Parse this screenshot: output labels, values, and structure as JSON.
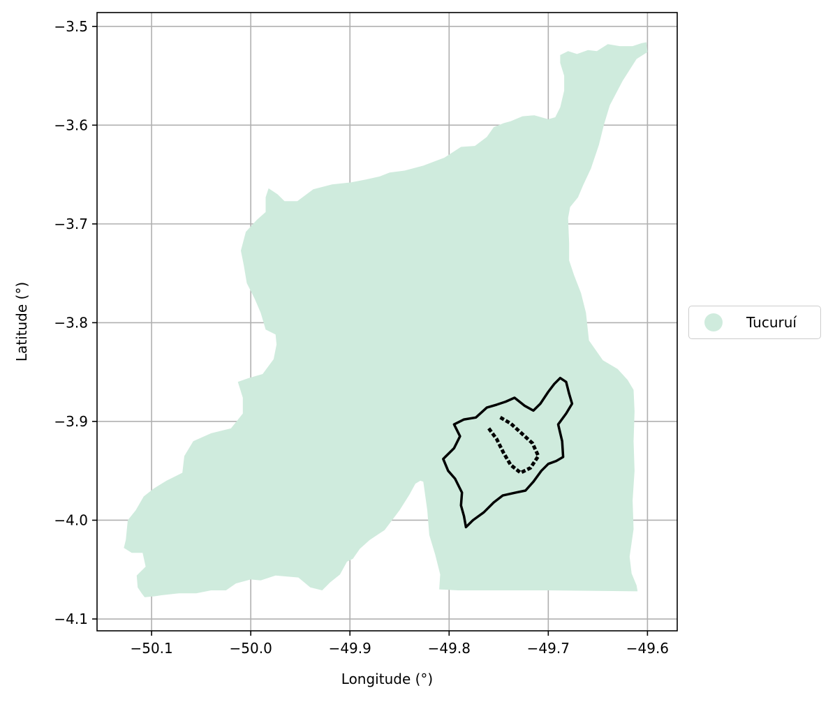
{
  "chart_data": {
    "type": "map",
    "xlabel": "Longitude (°)",
    "ylabel": "Latitude (°)",
    "xlim": [
      -50.155,
      -49.57
    ],
    "ylim": [
      -4.112,
      -3.486
    ],
    "grid": true,
    "x_ticks": [
      {
        "value": -50.1,
        "label": "−50.1"
      },
      {
        "value": -50.0,
        "label": "−50.0"
      },
      {
        "value": -49.9,
        "label": "−49.9"
      },
      {
        "value": -49.8,
        "label": "−49.8"
      },
      {
        "value": -49.7,
        "label": "−49.7"
      },
      {
        "value": -49.6,
        "label": "−49.6"
      }
    ],
    "y_ticks": [
      {
        "value": -3.5,
        "label": "−3.5"
      },
      {
        "value": -3.6,
        "label": "−3.6"
      },
      {
        "value": -3.7,
        "label": "−3.7"
      },
      {
        "value": -3.8,
        "label": "−3.8"
      },
      {
        "value": -3.9,
        "label": "−3.9"
      },
      {
        "value": -4.0,
        "label": "−4.0"
      },
      {
        "value": -4.1,
        "label": "−4.1"
      }
    ],
    "legend": {
      "position": "right",
      "entries": [
        {
          "name": "Tucuruí",
          "color": "#cfebdd"
        }
      ]
    },
    "colors": {
      "region_fill": "#cfebdd",
      "outline": "#000000",
      "grid": "#b0b0b0"
    },
    "region_polygon": [
      [
        -50.107,
        -4.078
      ],
      [
        -50.097,
        -4.077
      ],
      [
        -50.09,
        -4.076
      ],
      [
        -50.072,
        -4.074
      ],
      [
        -50.055,
        -4.074
      ],
      [
        -50.04,
        -4.071
      ],
      [
        -50.025,
        -4.071
      ],
      [
        -50.015,
        -4.064
      ],
      [
        -50.0,
        -4.06
      ],
      [
        -49.99,
        -4.061
      ],
      [
        -49.975,
        -4.056
      ],
      [
        -49.952,
        -4.058
      ],
      [
        -49.94,
        -4.068
      ],
      [
        -49.928,
        -4.071
      ],
      [
        -49.92,
        -4.063
      ],
      [
        -49.91,
        -4.055
      ],
      [
        -49.903,
        -4.042
      ],
      [
        -49.897,
        -4.039
      ],
      [
        -49.89,
        -4.029
      ],
      [
        -49.88,
        -4.02
      ],
      [
        -49.865,
        -4.01
      ],
      [
        -49.85,
        -3.99
      ],
      [
        -49.84,
        -3.974
      ],
      [
        -49.834,
        -3.963
      ],
      [
        -49.829,
        -3.96
      ],
      [
        -49.826,
        -3.961
      ],
      [
        -49.822,
        -3.99
      ],
      [
        -49.82,
        -4.015
      ],
      [
        -49.814,
        -4.035
      ],
      [
        -49.809,
        -4.055
      ],
      [
        -49.81,
        -4.07
      ],
      [
        -49.791,
        -4.071
      ],
      [
        -49.7,
        -4.071
      ],
      [
        -49.61,
        -4.072
      ],
      [
        -49.611,
        -4.066
      ],
      [
        -49.616,
        -4.054
      ],
      [
        -49.618,
        -4.037
      ],
      [
        -49.614,
        -4.009
      ],
      [
        -49.615,
        -3.98
      ],
      [
        -49.613,
        -3.95
      ],
      [
        -49.614,
        -3.92
      ],
      [
        -49.613,
        -3.89
      ],
      [
        -49.614,
        -3.868
      ],
      [
        -49.62,
        -3.858
      ],
      [
        -49.63,
        -3.847
      ],
      [
        -49.645,
        -3.838
      ],
      [
        -49.659,
        -3.818
      ],
      [
        -49.662,
        -3.79
      ],
      [
        -49.667,
        -3.77
      ],
      [
        -49.674,
        -3.752
      ],
      [
        -49.679,
        -3.737
      ],
      [
        -49.679,
        -3.72
      ],
      [
        -49.68,
        -3.694
      ],
      [
        -49.678,
        -3.683
      ],
      [
        -49.67,
        -3.673
      ],
      [
        -49.665,
        -3.661
      ],
      [
        -49.657,
        -3.644
      ],
      [
        -49.649,
        -3.62
      ],
      [
        -49.644,
        -3.6
      ],
      [
        -49.638,
        -3.58
      ],
      [
        -49.625,
        -3.555
      ],
      [
        -49.611,
        -3.533
      ],
      [
        -49.6,
        -3.526
      ],
      [
        -49.601,
        -3.516
      ],
      [
        -49.606,
        -3.517
      ],
      [
        -49.615,
        -3.52
      ],
      [
        -49.628,
        -3.52
      ],
      [
        -49.64,
        -3.518
      ],
      [
        -49.651,
        -3.525
      ],
      [
        -49.66,
        -3.524
      ],
      [
        -49.671,
        -3.528
      ],
      [
        -49.68,
        -3.525
      ],
      [
        -49.688,
        -3.529
      ],
      [
        -49.688,
        -3.537
      ],
      [
        -49.684,
        -3.55
      ],
      [
        -49.684,
        -3.565
      ],
      [
        -49.688,
        -3.582
      ],
      [
        -49.693,
        -3.592
      ],
      [
        -49.7,
        -3.594
      ],
      [
        -49.714,
        -3.59
      ],
      [
        -49.726,
        -3.591
      ],
      [
        -49.738,
        -3.596
      ],
      [
        -49.745,
        -3.598
      ],
      [
        -49.755,
        -3.602
      ],
      [
        -49.762,
        -3.612
      ],
      [
        -49.774,
        -3.621
      ],
      [
        -49.788,
        -3.622
      ],
      [
        -49.805,
        -3.633
      ],
      [
        -49.826,
        -3.641
      ],
      [
        -49.845,
        -3.646
      ],
      [
        -49.86,
        -3.648
      ],
      [
        -49.87,
        -3.652
      ],
      [
        -49.884,
        -3.655
      ],
      [
        -49.899,
        -3.658
      ],
      [
        -49.918,
        -3.66
      ],
      [
        -49.937,
        -3.665
      ],
      [
        -49.953,
        -3.677
      ],
      [
        -49.966,
        -3.677
      ],
      [
        -49.973,
        -3.67
      ],
      [
        -49.982,
        -3.664
      ],
      [
        -49.985,
        -3.673
      ],
      [
        -49.985,
        -3.688
      ],
      [
        -49.994,
        -3.696
      ],
      [
        -50.005,
        -3.708
      ],
      [
        -50.01,
        -3.727
      ],
      [
        -50.007,
        -3.742
      ],
      [
        -50.004,
        -3.76
      ],
      [
        -49.996,
        -3.776
      ],
      [
        -49.99,
        -3.79
      ],
      [
        -49.985,
        -3.807
      ],
      [
        -49.975,
        -3.812
      ],
      [
        -49.974,
        -3.822
      ],
      [
        -49.977,
        -3.837
      ],
      [
        -49.988,
        -3.852
      ],
      [
        -50.002,
        -3.856
      ],
      [
        -50.013,
        -3.86
      ],
      [
        -50.008,
        -3.876
      ],
      [
        -50.008,
        -3.892
      ],
      [
        -50.02,
        -3.907
      ],
      [
        -50.04,
        -3.912
      ],
      [
        -50.058,
        -3.92
      ],
      [
        -50.067,
        -3.935
      ],
      [
        -50.069,
        -3.952
      ],
      [
        -50.085,
        -3.96
      ],
      [
        -50.098,
        -3.968
      ],
      [
        -50.108,
        -3.976
      ],
      [
        -50.116,
        -3.99
      ],
      [
        -50.124,
        -4.0
      ],
      [
        -50.126,
        -4.02
      ],
      [
        -50.128,
        -4.028
      ],
      [
        -50.12,
        -4.033
      ],
      [
        -50.109,
        -4.033
      ],
      [
        -50.106,
        -4.047
      ],
      [
        -50.115,
        -4.056
      ],
      [
        -50.114,
        -4.068
      ],
      [
        -50.11,
        -4.074
      ]
    ],
    "reservoir_outline": [
      [
        -49.783,
        -4.007
      ],
      [
        -49.776,
        -4.0
      ],
      [
        -49.765,
        -3.992
      ],
      [
        -49.755,
        -3.982
      ],
      [
        -49.746,
        -3.975
      ],
      [
        -49.733,
        -3.972
      ],
      [
        -49.723,
        -3.97
      ],
      [
        -49.715,
        -3.961
      ],
      [
        -49.707,
        -3.95
      ],
      [
        -49.7,
        -3.943
      ],
      [
        -49.692,
        -3.94
      ],
      [
        -49.685,
        -3.936
      ],
      [
        -49.686,
        -3.92
      ],
      [
        -49.69,
        -3.903
      ],
      [
        -49.682,
        -3.892
      ],
      [
        -49.676,
        -3.882
      ],
      [
        -49.679,
        -3.872
      ],
      [
        -49.682,
        -3.86
      ],
      [
        -49.688,
        -3.856
      ],
      [
        -49.694,
        -3.862
      ],
      [
        -49.7,
        -3.87
      ],
      [
        -49.708,
        -3.882
      ],
      [
        -49.715,
        -3.889
      ],
      [
        -49.724,
        -3.884
      ],
      [
        -49.734,
        -3.876
      ],
      [
        -49.743,
        -3.88
      ],
      [
        -49.752,
        -3.883
      ],
      [
        -49.762,
        -3.886
      ],
      [
        -49.773,
        -3.896
      ],
      [
        -49.785,
        -3.898
      ],
      [
        -49.795,
        -3.903
      ],
      [
        -49.789,
        -3.915
      ],
      [
        -49.795,
        -3.927
      ],
      [
        -49.806,
        -3.938
      ],
      [
        -49.801,
        -3.95
      ],
      [
        -49.794,
        -3.958
      ],
      [
        -49.787,
        -3.972
      ],
      [
        -49.788,
        -3.985
      ],
      [
        -49.785,
        -3.996
      ]
    ],
    "reservoir_inner": [
      [
        -49.76,
        -3.907
      ],
      [
        -49.752,
        -3.918
      ],
      [
        -49.745,
        -3.932
      ],
      [
        -49.738,
        -3.944
      ],
      [
        -49.728,
        -3.952
      ],
      [
        -49.718,
        -3.947
      ],
      [
        -49.71,
        -3.935
      ],
      [
        -49.716,
        -3.922
      ],
      [
        -49.727,
        -3.912
      ],
      [
        -49.738,
        -3.902
      ],
      [
        -49.75,
        -3.895
      ]
    ]
  }
}
